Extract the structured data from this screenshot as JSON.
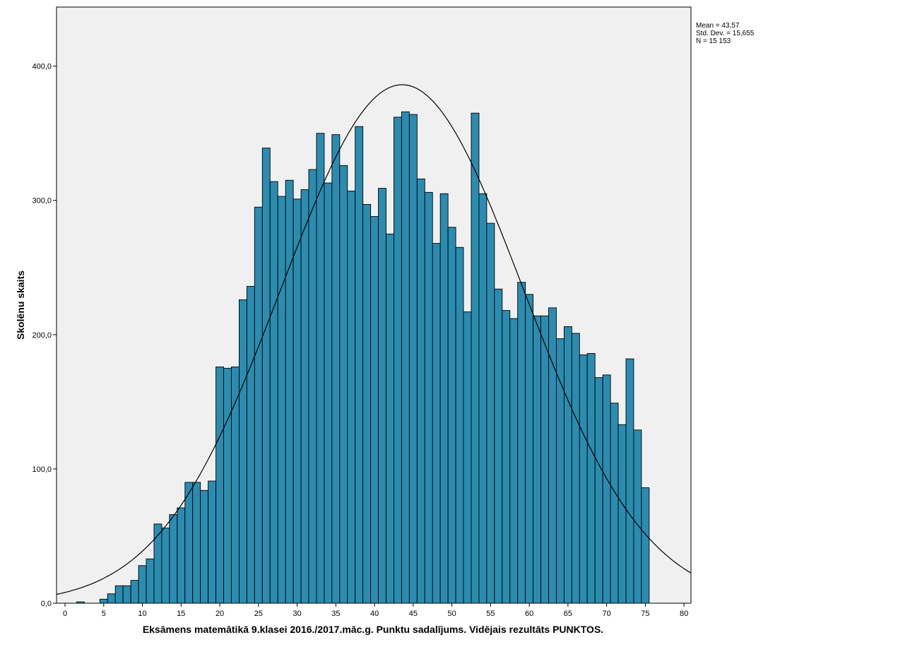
{
  "chart_data": {
    "type": "bar",
    "subtype": "histogram",
    "title": "",
    "xlabel": "Eksāmens matemātikā 9.klasei 2016./2017.māc.g. Punktu sadalījums. Vidējais rezultāts PUNKTOS.",
    "ylabel": "Skolēnu skaits",
    "xlim": [
      -1.1,
      80.9
    ],
    "ylim": [
      0,
      444
    ],
    "x_ticks": [
      0,
      5,
      10,
      15,
      20,
      25,
      30,
      35,
      40,
      45,
      50,
      55,
      60,
      65,
      70,
      75,
      80
    ],
    "x_tick_labels": [
      "0",
      "5",
      "10",
      "15",
      "20",
      "25",
      "30",
      "35",
      "40",
      "45",
      "50",
      "55",
      "60",
      "65",
      "70",
      "75",
      "80"
    ],
    "y_ticks": [
      0,
      100,
      200,
      300,
      400
    ],
    "y_tick_labels": [
      "0,0",
      "100,0",
      "200,0",
      "300,0",
      "400,0"
    ],
    "bin_width": 1,
    "bins": [
      0,
      1,
      2,
      3,
      4,
      5,
      6,
      7,
      8,
      9,
      10,
      11,
      12,
      13,
      14,
      15,
      16,
      17,
      18,
      19,
      20,
      21,
      22,
      23,
      24,
      25,
      26,
      27,
      28,
      29,
      30,
      31,
      32,
      33,
      34,
      35,
      36,
      37,
      38,
      39,
      40,
      41,
      42,
      43,
      44,
      45,
      46,
      47,
      48,
      49,
      50,
      51,
      52,
      53,
      54,
      55,
      56,
      57,
      58,
      59,
      60,
      61,
      62,
      63,
      64,
      65,
      66,
      67,
      68,
      69,
      70,
      71,
      72,
      73,
      74,
      75
    ],
    "values": [
      0,
      0,
      1,
      0,
      0,
      3,
      7,
      13,
      13,
      17,
      28,
      33,
      59,
      56,
      66,
      71,
      90,
      90,
      84,
      91,
      176,
      175,
      176,
      226,
      236,
      295,
      339,
      314,
      303,
      315,
      301,
      308,
      323,
      350,
      313,
      349,
      326,
      307,
      355,
      297,
      288,
      309,
      275,
      362,
      366,
      364,
      316,
      306,
      268,
      305,
      280,
      265,
      217,
      365,
      305,
      283,
      234,
      218,
      212,
      239,
      230,
      214,
      214,
      220,
      197,
      206,
      201,
      185,
      186,
      168,
      170,
      149,
      133,
      182,
      129,
      86
    ],
    "bar_color": "#2B8CB0",
    "plot_background": "#F0F0F0",
    "normal_curve": {
      "mean": 43.57,
      "std_dev": 15.655,
      "n": 15153
    },
    "grid": false,
    "legend_position": "top-right"
  },
  "stats": {
    "mean_label": "Mean = 43,57",
    "std_label": "Std. Dev. = 15,655",
    "n_label": "N = 15 153"
  }
}
